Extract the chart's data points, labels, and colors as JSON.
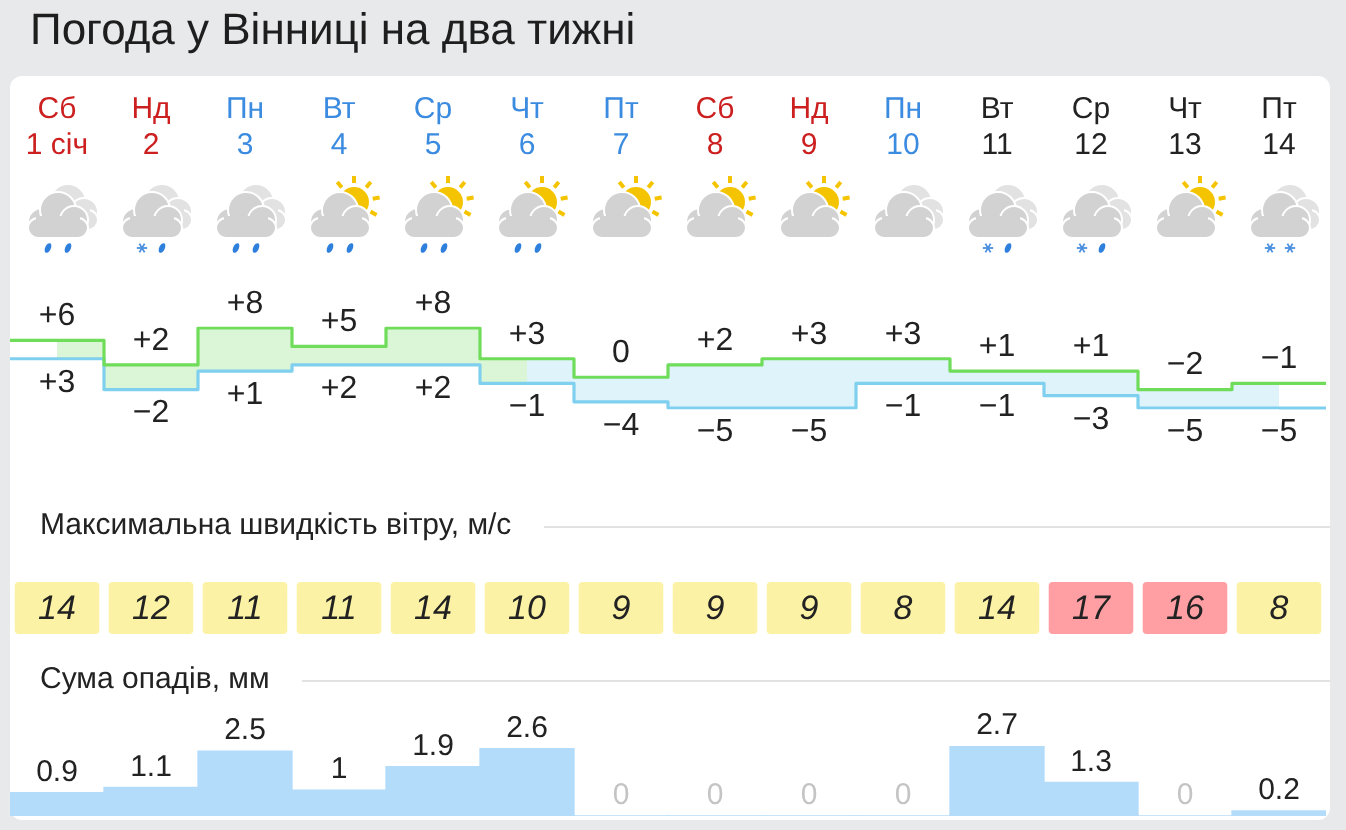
{
  "chart_data": [
    {
      "type": "step",
      "title": "Погода у Вінниці на два тижні",
      "categories": [
        "Сб 1 січ",
        "Нд 2",
        "Пн 3",
        "Вт 4",
        "Ср 5",
        "Чт 6",
        "Пт 7",
        "Сб 8",
        "Нд 9",
        "Пн 10",
        "Вт 11",
        "Ср 12",
        "Чт 13",
        "Пт 14"
      ],
      "series": [
        {
          "values": [
            6,
            2,
            8,
            5,
            8,
            3,
            0,
            2,
            3,
            3,
            1,
            1,
            -2,
            -1
          ],
          "color": "#6fdc5a",
          "value_labels": [
            "+6",
            "+2",
            "+8",
            "+5",
            "+8",
            "+3",
            "0",
            "+2",
            "+3",
            "+3",
            "+1",
            "+1",
            "−2",
            "−1"
          ],
          "lower": [
            3,
            -2,
            1,
            2,
            2,
            -1,
            null,
            null,
            null,
            null,
            null,
            null,
            null,
            null
          ],
          "upper": [
            6,
            2,
            8,
            5,
            8,
            3,
            null,
            null,
            null,
            null,
            null,
            null,
            null,
            null
          ]
        },
        {
          "values": [
            3,
            -2,
            1,
            2,
            2,
            -1,
            -4,
            -5,
            -5,
            -1,
            -1,
            -3,
            -5,
            -5
          ],
          "color": "#7fd0ee",
          "value_labels": [
            "+3",
            "−2",
            "+1",
            "+2",
            "+2",
            "−1",
            "−4",
            "−5",
            "−5",
            "−1",
            "−1",
            "−3",
            "−5",
            "−5"
          ],
          "lower": [
            null,
            null,
            null,
            null,
            null,
            -1,
            -4,
            -5,
            -5,
            -1,
            -1,
            -3,
            -5,
            -5
          ],
          "upper": [
            null,
            null,
            null,
            null,
            null,
            3,
            0,
            2,
            3,
            3,
            1,
            1,
            -2,
            -1
          ]
        }
      ],
      "marker": "none",
      "tick_labels": "x"
    },
    {
      "type": "heatmap",
      "title": "Максимальна швидкість вітру, м/с",
      "categories": [
        null,
        null,
        null,
        null,
        null,
        null,
        null,
        null,
        null,
        null,
        null,
        null,
        null,
        null
      ],
      "y_categories": [
        null
      ],
      "cells": [
        [
          14,
          12,
          11,
          11,
          14,
          10,
          9,
          9,
          9,
          8,
          14,
          17,
          16,
          8
        ]
      ],
      "colors": [
        "#fbf2a5",
        "#fbf2a5",
        "#fbf2a5",
        "#fbf2a5",
        "#fbf2a5",
        "#fbf2a5",
        "#fbf2a5",
        "#fbf2a5",
        "#fbf2a5",
        "#fbf2a5",
        "#fbf2a5",
        "#ff9fa3",
        "#ff9fa3",
        "#fbf2a5"
      ],
      "data_labels": true
    },
    {
      "type": "bar",
      "title": "Сума опадів, мм",
      "categories": [
        null,
        null,
        null,
        null,
        null,
        null,
        null,
        null,
        null,
        null,
        null,
        null,
        null,
        null
      ],
      "values": [
        0.9,
        1.1,
        2.5,
        1,
        1.9,
        2.6,
        0,
        0,
        0,
        0,
        2.7,
        1.3,
        0,
        0.2
      ],
      "color": "#b3dcfa",
      "data_labels": true
    }
  ]
}
